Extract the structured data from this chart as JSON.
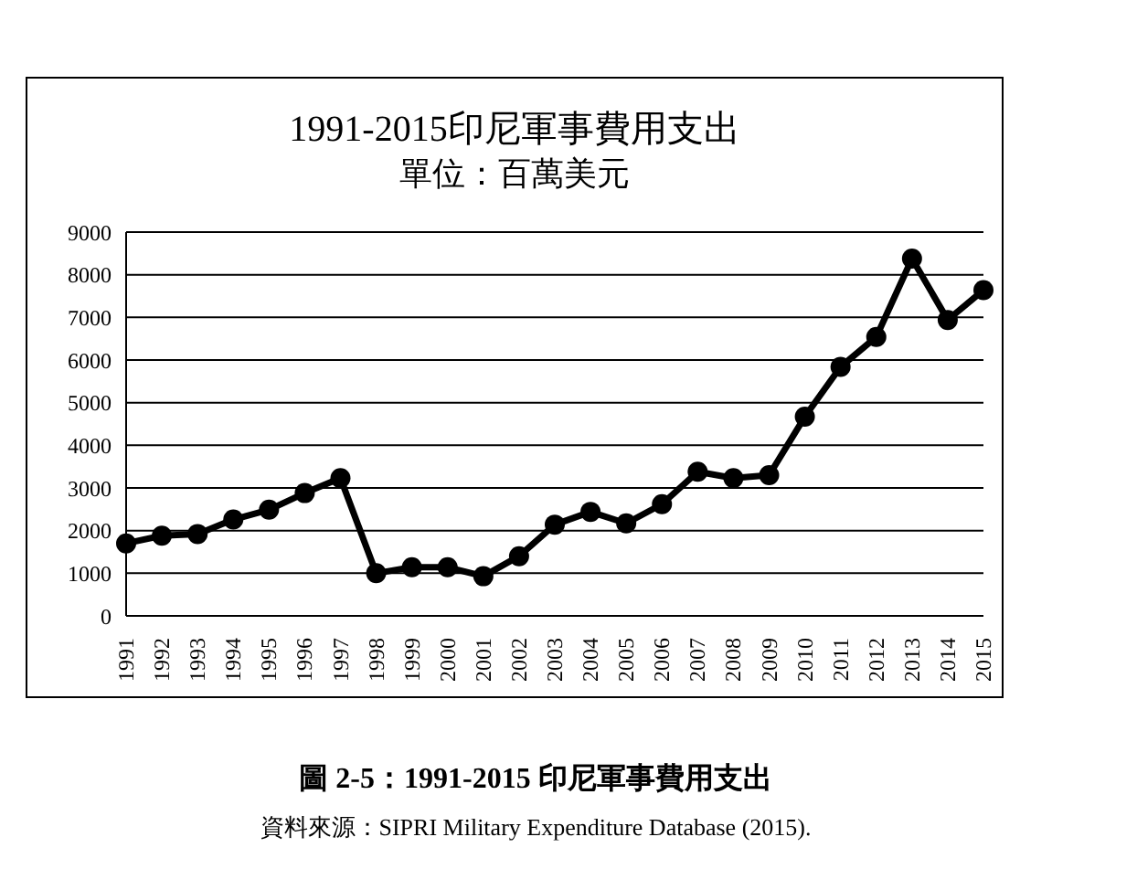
{
  "chart_data": {
    "type": "line",
    "title": "1991-2015印尼軍事費用支出",
    "subtitle": "單位：百萬美元",
    "categories": [
      "1991",
      "1992",
      "1993",
      "1994",
      "1995",
      "1996",
      "1997",
      "1998",
      "1999",
      "2000",
      "2001",
      "2002",
      "2003",
      "2004",
      "2005",
      "2006",
      "2007",
      "2008",
      "2009",
      "2010",
      "2011",
      "2012",
      "2013",
      "2014",
      "2015"
    ],
    "series": [
      {
        "color": "#000000",
        "values": [
          1700,
          1880,
          1920,
          2260,
          2490,
          2880,
          3230,
          1000,
          1140,
          1140,
          930,
          1400,
          2140,
          2440,
          2170,
          2620,
          3380,
          3230,
          3300,
          4670,
          5840,
          6540,
          8380,
          6940,
          7640
        ]
      }
    ],
    "ylim": [
      0,
      9000
    ],
    "yticks": [
      0,
      1000,
      2000,
      3000,
      4000,
      5000,
      6000,
      7000,
      8000,
      9000
    ],
    "grid": "y",
    "legend": false,
    "marker": "circle",
    "line_style": "solid",
    "annotations": [
      "圖 2-5：1991-2015 印尼軍事費用支出",
      "資料來源：SIPRI Military Expenditure Database (2015)."
    ]
  }
}
